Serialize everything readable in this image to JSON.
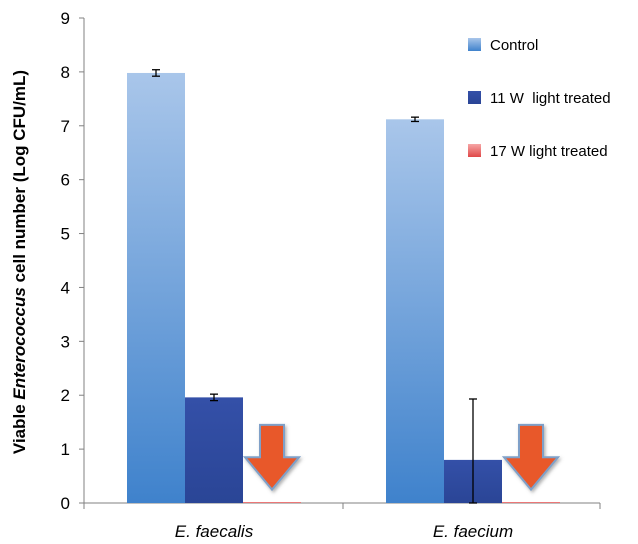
{
  "chart_data": {
    "type": "bar",
    "categories": [
      "E. faecalis",
      "E. faecium"
    ],
    "series": [
      {
        "name": "Control",
        "values": [
          7.98,
          7.12
        ],
        "errors": [
          0.06,
          0.04
        ],
        "color": "#5b8fd4"
      },
      {
        "name": "11 W  light treated",
        "values": [
          1.96,
          0.8
        ],
        "errors": [
          0.06,
          1.13
        ],
        "color": "#2f4a9e"
      },
      {
        "name": "17 W light treated",
        "values": [
          0.01,
          0.01
        ],
        "errors": [
          0,
          0
        ],
        "color": "#f08080"
      }
    ],
    "ylabel_prefix": "Viable ",
    "ylabel_italic": "Enterococcus",
    "ylabel_suffix": " cell number (Log CFU/mL)",
    "ylim": [
      0,
      9
    ],
    "yticks": [
      "0",
      "1",
      "2",
      "3",
      "4",
      "5",
      "6",
      "7",
      "8",
      "9"
    ],
    "grid": false,
    "legend_position": "top-right",
    "annotations": [
      {
        "type": "down-arrow",
        "category": "E. faecalis",
        "color": "#e8582a"
      },
      {
        "type": "down-arrow",
        "category": "E. faecium",
        "color": "#e8582a"
      }
    ]
  }
}
